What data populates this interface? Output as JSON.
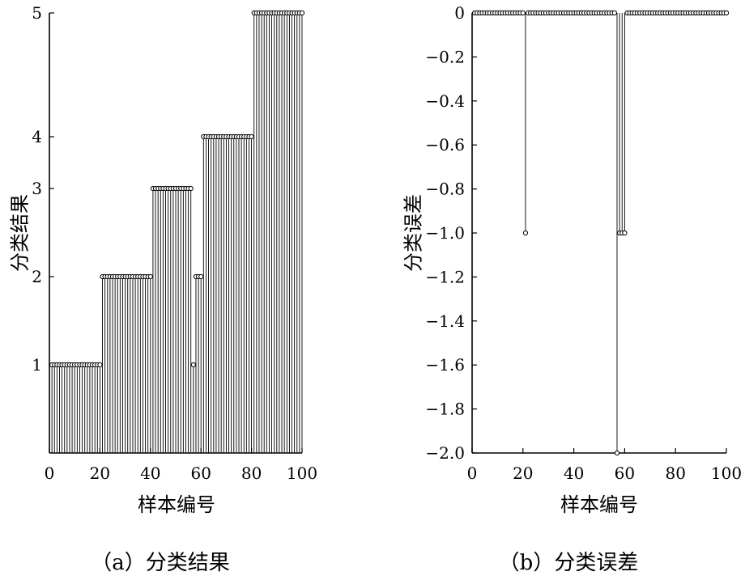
{
  "chart_data": [
    {
      "type": "stem",
      "xlabel": "样本编号",
      "ylabel": "分类结果",
      "caption": "（a）分类结果",
      "xlim": [
        0,
        100
      ],
      "ylim": [
        0,
        5
      ],
      "x_ticks": [
        "0",
        "20",
        "40",
        "60",
        "80",
        "100"
      ],
      "y_ticks": [
        "1",
        "2",
        "3",
        "4",
        "5"
      ],
      "series": [
        {
          "x": [
            1,
            2,
            3,
            4,
            5,
            6,
            7,
            8,
            9,
            10,
            11,
            12,
            13,
            14,
            15,
            16,
            17,
            18,
            19,
            20,
            21,
            22,
            23,
            24,
            25,
            26,
            27,
            28,
            29,
            30,
            31,
            32,
            33,
            34,
            35,
            36,
            37,
            38,
            39,
            40,
            41,
            42,
            43,
            44,
            45,
            46,
            47,
            48,
            49,
            50,
            51,
            52,
            53,
            54,
            55,
            56,
            57,
            58,
            59,
            60,
            61,
            62,
            63,
            64,
            65,
            66,
            67,
            68,
            69,
            70,
            71,
            72,
            73,
            74,
            75,
            76,
            77,
            78,
            79,
            80,
            81,
            82,
            83,
            84,
            85,
            86,
            87,
            88,
            89,
            90,
            91,
            92,
            93,
            94,
            95,
            96,
            97,
            98,
            99,
            100
          ],
          "values": [
            1,
            1,
            1,
            1,
            1,
            1,
            1,
            1,
            1,
            1,
            1,
            1,
            1,
            1,
            1,
            1,
            1,
            1,
            1,
            1,
            2,
            2,
            2,
            2,
            2,
            2,
            2,
            2,
            2,
            2,
            2,
            2,
            2,
            2,
            2,
            2,
            2,
            2,
            2,
            2,
            3,
            3,
            3,
            3,
            3,
            3,
            3,
            3,
            3,
            3,
            3,
            3,
            3,
            3,
            3,
            3,
            1,
            2,
            2,
            2,
            4,
            4,
            4,
            4,
            4,
            4,
            4,
            4,
            4,
            4,
            4,
            4,
            4,
            4,
            4,
            4,
            4,
            4,
            4,
            4,
            5,
            5,
            5,
            5,
            5,
            5,
            5,
            5,
            5,
            5,
            5,
            5,
            5,
            5,
            5,
            5,
            5,
            5,
            5,
            5
          ]
        }
      ]
    },
    {
      "type": "stem",
      "xlabel": "样本编号",
      "ylabel": "分类误差",
      "caption": "（b）分类误差",
      "xlim": [
        0,
        100
      ],
      "ylim": [
        -2.0,
        0
      ],
      "x_ticks": [
        "0",
        "20",
        "40",
        "60",
        "80",
        "100"
      ],
      "y_ticks": [
        "0",
        "−0.2",
        "−0.4",
        "−0.6",
        "−0.8",
        "−1.0",
        "−1.2",
        "−1.4",
        "−1.6",
        "−1.8",
        "−2.0"
      ],
      "series": [
        {
          "x": [
            1,
            2,
            3,
            4,
            5,
            6,
            7,
            8,
            9,
            10,
            11,
            12,
            13,
            14,
            15,
            16,
            17,
            18,
            19,
            20,
            21,
            22,
            23,
            24,
            25,
            26,
            27,
            28,
            29,
            30,
            31,
            32,
            33,
            34,
            35,
            36,
            37,
            38,
            39,
            40,
            41,
            42,
            43,
            44,
            45,
            46,
            47,
            48,
            49,
            50,
            51,
            52,
            53,
            54,
            55,
            56,
            57,
            58,
            59,
            60,
            61,
            62,
            63,
            64,
            65,
            66,
            67,
            68,
            69,
            70,
            71,
            72,
            73,
            74,
            75,
            76,
            77,
            78,
            79,
            80,
            81,
            82,
            83,
            84,
            85,
            86,
            87,
            88,
            89,
            90,
            91,
            92,
            93,
            94,
            95,
            96,
            97,
            98,
            99,
            100
          ],
          "values": [
            0,
            0,
            0,
            0,
            0,
            0,
            0,
            0,
            0,
            0,
            0,
            0,
            0,
            0,
            0,
            0,
            0,
            0,
            0,
            0,
            -1,
            0,
            0,
            0,
            0,
            0,
            0,
            0,
            0,
            0,
            0,
            0,
            0,
            0,
            0,
            0,
            0,
            0,
            0,
            0,
            0,
            0,
            0,
            0,
            0,
            0,
            0,
            0,
            0,
            0,
            0,
            0,
            0,
            0,
            0,
            0,
            -2,
            -1,
            -1,
            -1,
            0,
            0,
            0,
            0,
            0,
            0,
            0,
            0,
            0,
            0,
            0,
            0,
            0,
            0,
            0,
            0,
            0,
            0,
            0,
            0,
            0,
            0,
            0,
            0,
            0,
            0,
            0,
            0,
            0,
            0,
            0,
            0,
            0,
            0,
            0,
            0,
            0,
            0,
            0,
            0
          ]
        }
      ]
    }
  ]
}
